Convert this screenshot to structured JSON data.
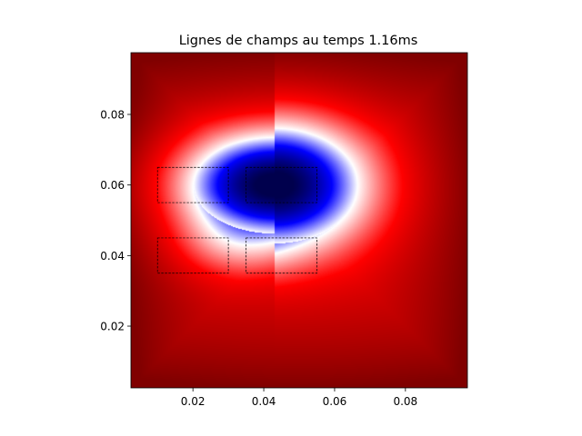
{
  "chart_data": {
    "type": "heatmap",
    "title": "Lignes de champs au temps 1.16ms",
    "xlabel": "",
    "ylabel": "",
    "xlim": [
      0.0025,
      0.0975
    ],
    "ylim": [
      0.0025,
      0.0975
    ],
    "x_ticks": [
      0.02,
      0.04,
      0.06,
      0.08
    ],
    "y_ticks": [
      0.02,
      0.04,
      0.06,
      0.08
    ],
    "x_tick_labels": [
      "0.02",
      "0.04",
      "0.06",
      "0.08"
    ],
    "y_tick_labels": [
      "0.02",
      "0.04",
      "0.06",
      "0.08"
    ],
    "colormap": "seismic",
    "colors": {
      "positive_max": "#800000",
      "zero": "#ffffff",
      "negative_max": "#00004d"
    },
    "grid": false,
    "field": {
      "background": 1.0,
      "corner_peak": 1.6,
      "negative_center": [
        0.043,
        0.06
      ],
      "negative_min": -1.0
    },
    "rectangles": [
      {
        "name": "rect-top-left",
        "x0": 0.01,
        "x1": 0.03,
        "y0": 0.055,
        "y1": 0.065
      },
      {
        "name": "rect-top-right",
        "x0": 0.035,
        "x1": 0.055,
        "y0": 0.055,
        "y1": 0.065
      },
      {
        "name": "rect-bottom-left",
        "x0": 0.01,
        "x1": 0.03,
        "y0": 0.035,
        "y1": 0.045
      },
      {
        "name": "rect-bottom-right",
        "x0": 0.035,
        "x1": 0.055,
        "y0": 0.035,
        "y1": 0.045
      }
    ]
  }
}
